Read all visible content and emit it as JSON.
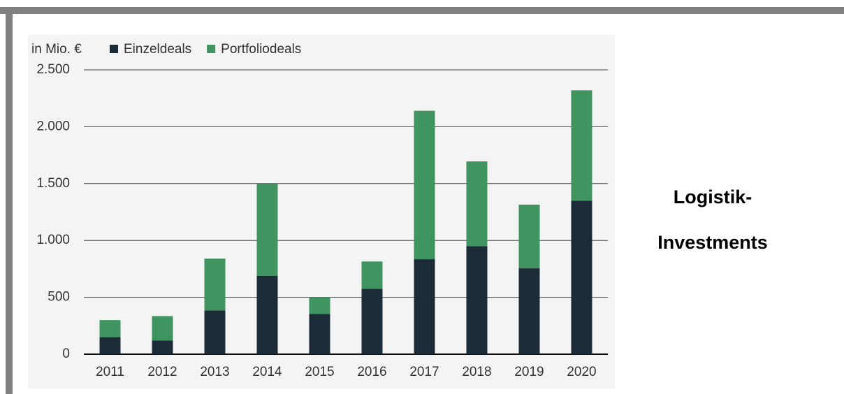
{
  "chart_data": {
    "type": "stacked_bar",
    "y_label": "in Mio. €",
    "annotations": [
      "Logistik-",
      "Investments"
    ],
    "categories": [
      "2011",
      "2012",
      "2013",
      "2014",
      "2015",
      "2016",
      "2017",
      "2018",
      "2019",
      "2020"
    ],
    "series": [
      {
        "name": "Einzeldeals",
        "color": "#1c2b38",
        "values": [
          150,
          120,
          385,
          690,
          355,
          575,
          835,
          950,
          755,
          1350
        ]
      },
      {
        "name": "Portfoliodeals",
        "color": "#3f9460",
        "values": [
          150,
          215,
          455,
          810,
          145,
          240,
          1305,
          745,
          560,
          970
        ]
      }
    ],
    "ylim": [
      0,
      2500
    ],
    "yticks": [
      0,
      500,
      {
        "value": 1000,
        "label": "1.000"
      },
      {
        "value": 1500,
        "label": "1.500"
      },
      {
        "value": 2000,
        "label": "2.000"
      },
      {
        "value": 2500,
        "label": "2.500"
      }
    ],
    "grid": true
  }
}
